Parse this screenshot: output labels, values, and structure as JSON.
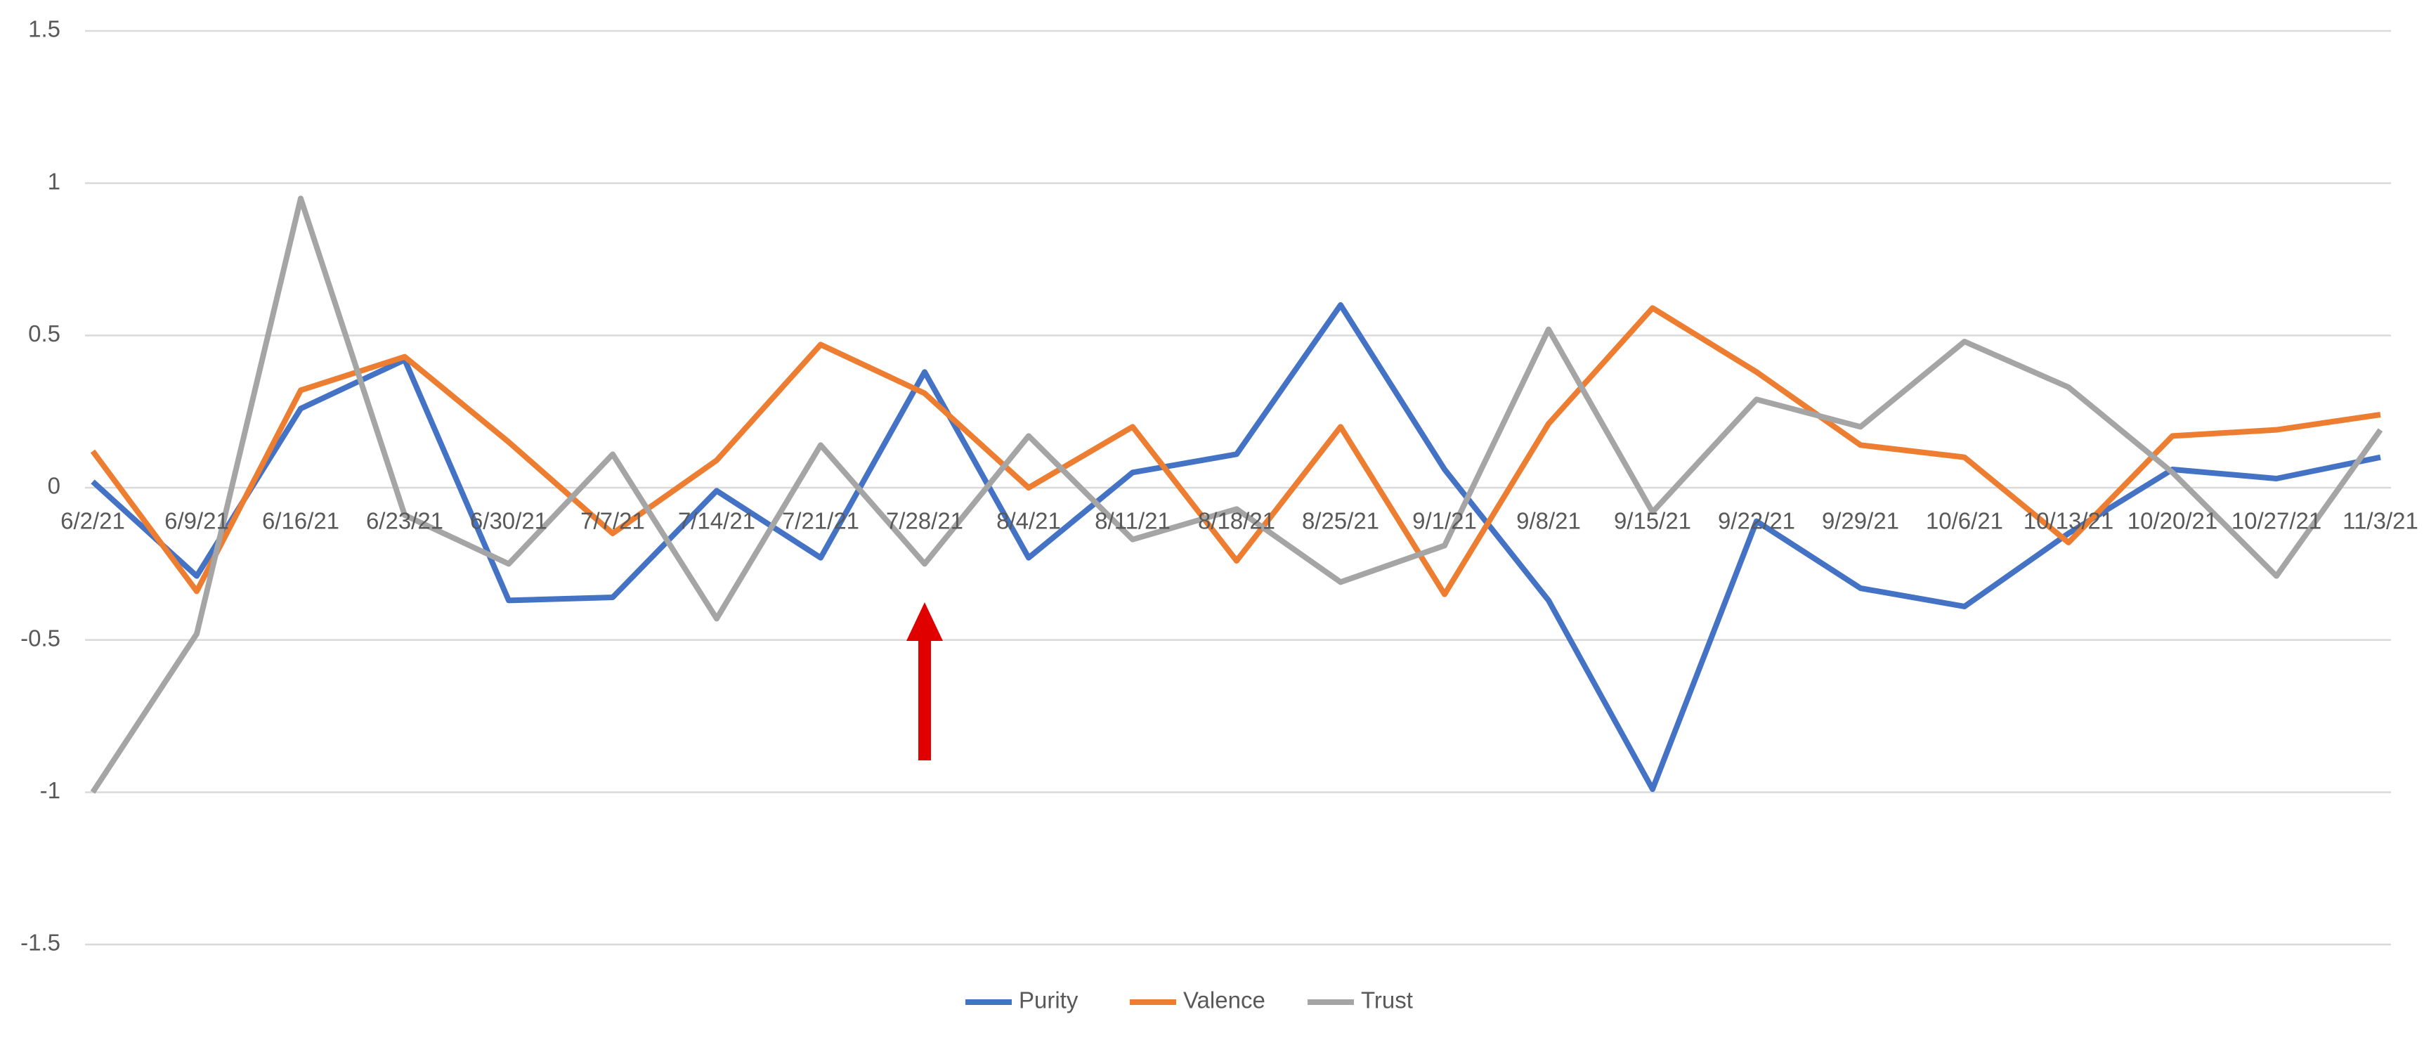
{
  "chart_data": {
    "type": "line",
    "categories": [
      "6/2/21",
      "6/9/21",
      "6/16/21",
      "6/23/21",
      "6/30/21",
      "7/7/21",
      "7/14/21",
      "7/21/21",
      "7/28/21",
      "8/4/21",
      "8/11/21",
      "8/18/21",
      "8/25/21",
      "9/1/21",
      "9/8/21",
      "9/15/21",
      "9/22/21",
      "9/29/21",
      "10/6/21",
      "10/13/21",
      "10/20/21",
      "10/27/21",
      "11/3/21"
    ],
    "series": [
      {
        "name": "Purity",
        "color": "#4472c4",
        "values": [
          0.02,
          -0.29,
          0.26,
          0.42,
          -0.37,
          -0.36,
          -0.01,
          -0.23,
          0.38,
          -0.23,
          0.05,
          0.11,
          0.6,
          0.06,
          -0.37,
          -0.99,
          -0.11,
          -0.33,
          -0.39,
          -0.15,
          0.06,
          0.03,
          0.1
        ]
      },
      {
        "name": "Valence",
        "color": "#ed7d31",
        "values": [
          0.12,
          -0.34,
          0.32,
          0.43,
          0.15,
          -0.15,
          0.09,
          0.47,
          0.31,
          0,
          0.2,
          -0.24,
          0.2,
          -0.35,
          0.21,
          0.59,
          0.38,
          0.14,
          0.1,
          -0.18,
          0.17,
          0.19,
          0.24
        ]
      },
      {
        "name": "Trust",
        "color": "#a5a5a5",
        "values": [
          -1.0,
          -0.48,
          0.95,
          -0.09,
          -0.25,
          0.11,
          -0.43,
          0.14,
          -0.25,
          0.17,
          -0.17,
          -0.07,
          -0.31,
          -0.19,
          0.52,
          -0.08,
          0.29,
          0.2,
          0.48,
          0.33,
          0.05,
          -0.29,
          0.19
        ]
      }
    ],
    "ylim": [
      -1.5,
      1.5
    ],
    "yticks": [
      1.5,
      1,
      0.5,
      0,
      -0.5,
      -1,
      -1.5
    ],
    "grid": true,
    "legend": "bottom"
  }
}
